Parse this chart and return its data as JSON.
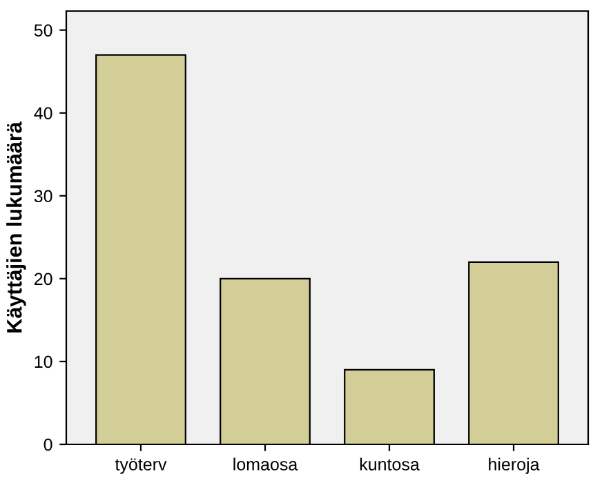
{
  "chart_data": {
    "type": "bar",
    "ylabel": "Käyttäjien lukumäärä",
    "categories": [
      "työterv",
      "lomaosa",
      "kuntosa",
      "hieroja"
    ],
    "values": [
      47,
      20,
      9,
      22
    ],
    "color": "#d3ce98",
    "ylim": [
      0,
      52.3
    ],
    "yticks": [
      0,
      10,
      20,
      30,
      40,
      50
    ],
    "grid": false
  }
}
